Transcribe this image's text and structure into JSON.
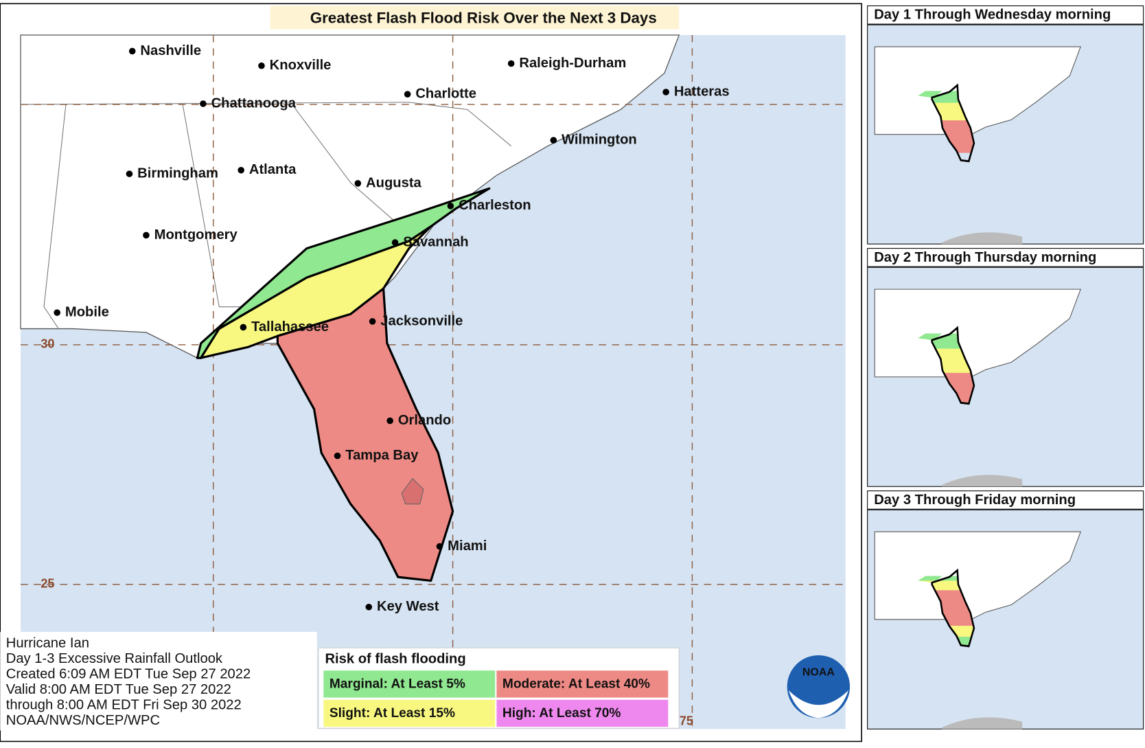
{
  "title": "Greatest Flash Flood Risk Over the Next 3 Days",
  "cities": [
    {
      "label": "Nashville"
    },
    {
      "label": "Knoxville"
    },
    {
      "label": "Raleigh-Durham"
    },
    {
      "label": "Hatteras"
    },
    {
      "label": "Charlotte"
    },
    {
      "label": "Chattanooga"
    },
    {
      "label": "Wilmington"
    },
    {
      "label": "Birmingham"
    },
    {
      "label": "Atlanta"
    },
    {
      "label": "Augusta"
    },
    {
      "label": "Charleston"
    },
    {
      "label": "Montgomery"
    },
    {
      "label": "Savannah"
    },
    {
      "label": "Mobile"
    },
    {
      "label": "Tallahassee"
    },
    {
      "label": "Jacksonville"
    },
    {
      "label": "Orlando"
    },
    {
      "label": "Tampa Bay"
    },
    {
      "label": "Miami"
    },
    {
      "label": "Key West"
    }
  ],
  "grid_labels": [
    30,
    25,
    75
  ],
  "legend": {
    "title": "Risk of flash flooding",
    "items": [
      {
        "label": "Marginal: At Least 5%",
        "color": "#90e890"
      },
      {
        "label": "Moderate: At Least 40%",
        "color": "#ee8a85"
      },
      {
        "label": "Slight: At Least 15%",
        "color": "#f8f880"
      },
      {
        "label": "High: At Least 70%",
        "color": "#ee88ee"
      }
    ]
  },
  "info": [
    "Hurricane Ian",
    "Day 1-3 Excessive Rainfall Outlook",
    "Created 6:09 AM EDT Tue Sep 27 2022",
    "Valid 8:00 AM EDT Tue Sep 27 2022",
    "through 8:00 AM EDT Fri Sep 30 2022",
    "NOAA/NWS/NCEP/WPC"
  ],
  "insets": [
    {
      "title": "Day 1 Through Wednesday morning"
    },
    {
      "title": "Day 2 Through Thursday morning"
    },
    {
      "title": "Day 3 Through Friday morning"
    }
  ],
  "logo": "NOAA"
}
